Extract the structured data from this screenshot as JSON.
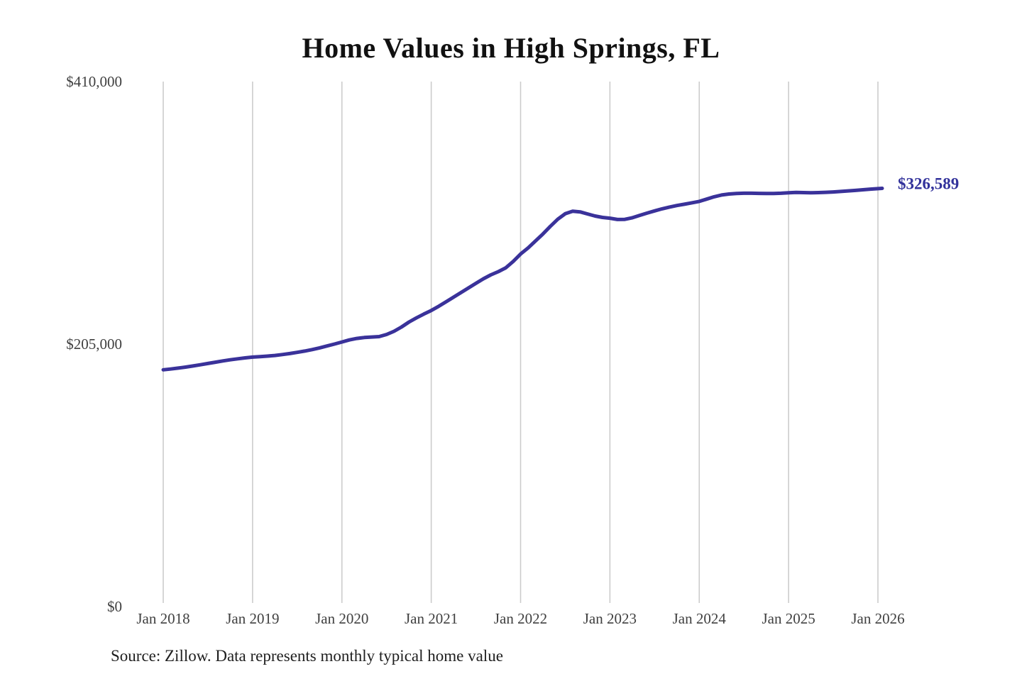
{
  "chart_data": {
    "type": "line",
    "title": "Home Values in High Springs, FL",
    "source": "Source: Zillow. Data represents monthly typical home value",
    "xlabel": "",
    "ylabel": "",
    "ylim": [
      0,
      410000
    ],
    "grid": "vertical-only",
    "legend": "none",
    "y_tick_values": [
      0,
      205000,
      410000
    ],
    "y_tick_labels": [
      "$0",
      "$205,000",
      "$410,000"
    ],
    "x_tick_labels": [
      "Jan 2018",
      "Jan 2019",
      "Jan 2020",
      "Jan 2021",
      "Jan 2022",
      "Jan 2023",
      "Jan 2024",
      "Jan 2025",
      "Jan 2026"
    ],
    "x_tick_interval_months": 12,
    "end_label": "$326,589",
    "end_value": 326589,
    "series": [
      {
        "name": "Monthly typical home value",
        "start": "Jan 2018",
        "interval": "monthly",
        "values_are_estimated_from_pixels": true,
        "values": [
          184900,
          185500,
          186200,
          187000,
          187900,
          188800,
          189800,
          190800,
          191800,
          192700,
          193500,
          194200,
          194800,
          195200,
          195600,
          196100,
          196800,
          197600,
          198500,
          199500,
          200700,
          202000,
          203500,
          205000,
          206600,
          208200,
          209400,
          210100,
          210500,
          210800,
          212500,
          215000,
          218300,
          222200,
          225400,
          228400,
          231200,
          234500,
          238000,
          241600,
          245200,
          248800,
          252400,
          256000,
          259000,
          261500,
          264500,
          269500,
          275300,
          280000,
          285500,
          291000,
          297000,
          302500,
          306800,
          308800,
          308200,
          306600,
          305000,
          303900,
          303300,
          302300,
          302400,
          303600,
          305500,
          307300,
          309000,
          310600,
          312000,
          313200,
          314200,
          315300,
          316400,
          318200,
          320000,
          321400,
          322200,
          322600,
          322800,
          322800,
          322700,
          322600,
          322600,
          322800,
          323200,
          323400,
          323300,
          323200,
          323300,
          323500,
          323800,
          324200,
          324600,
          325000,
          325500,
          326000,
          326589
        ]
      }
    ],
    "colors": {
      "line": "#3a329a",
      "grid": "#cccccc",
      "tick_text": "#404040",
      "title_text": "#111111",
      "end_label_text": "#32329b",
      "source_text": "#1f1f1f",
      "background": "#ffffff"
    }
  }
}
